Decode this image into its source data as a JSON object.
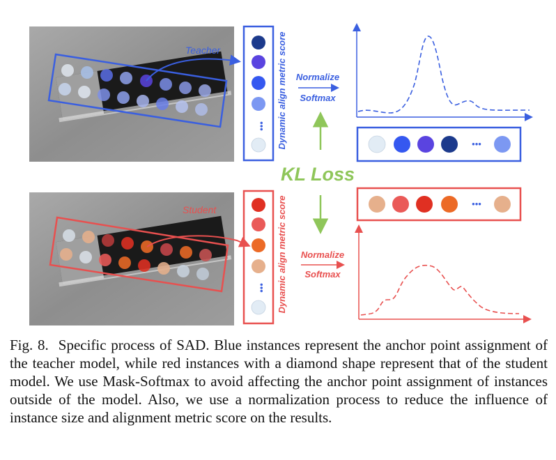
{
  "teacher": {
    "label": "Teacher",
    "score_label": "Dynamic align metric score",
    "normalize": "Normalize",
    "softmax": "Softmax",
    "ellipsis": "•••",
    "color": "#3a5fe0"
  },
  "student": {
    "label": "Student",
    "score_label": "Dynamic align metric score",
    "normalize": "Normalize",
    "softmax": "Softmax",
    "ellipsis": "•••",
    "color": "#e8504f"
  },
  "kl_loss": "KL Loss",
  "colors": {
    "kl_green": "#8fc65a",
    "teacher_dark": "#1c3a8c",
    "teacher_violet": "#5a44e0",
    "teacher_blue": "#3558f0",
    "teacher_light": "#7c98f2",
    "pale": "#e2ecf5",
    "student_red": "#e03022",
    "student_coral": "#ea5a58",
    "student_orange": "#ec6a26",
    "student_tan": "#e6b08c"
  },
  "caption": {
    "label": "Fig. 8.",
    "text": "Specific process of SAD. Blue instances represent the anchor point assignment of the teacher model, while red instances with a diamond shape represent that of the student model. We use Mask-Softmax to avoid affecting the anchor point assignment of instances outside of the model. Also, we use a normalization process to reduce the influence of instance size and alignment metric score on the results."
  }
}
